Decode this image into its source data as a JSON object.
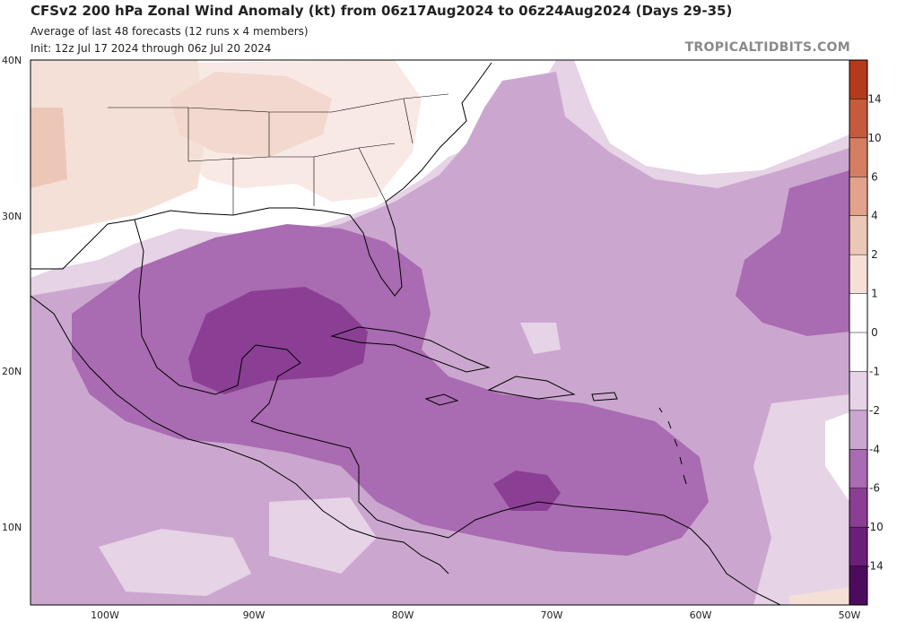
{
  "header": {
    "title": "CFSv2 200 hPa Zonal Wind Anomaly (kt) from 06z17Aug2024 to 06z24Aug2024 (Days 29-35)",
    "subtitle1": "Average of last 48 forecasts (12 runs x 4 members)",
    "subtitle2": "Init: 12z Jul 17 2024 through 06z Jul 20 2024",
    "brand": "TROPICALTIDBITS.COM"
  },
  "axes": {
    "lat_labels": [
      "40N",
      "30N",
      "20N",
      "10N"
    ],
    "lon_labels": [
      "100W",
      "90W",
      "80W",
      "70W",
      "60W",
      "50W"
    ]
  },
  "colorbar": {
    "labels": [
      "14",
      "10",
      "6",
      "4",
      "2",
      "1",
      "0",
      "-1",
      "-2",
      "-4",
      "-6",
      "-10",
      "-14"
    ],
    "colors": [
      "#b5391b",
      "#c65a3c",
      "#d47e62",
      "#e2a28c",
      "#ecc6b6",
      "#f5e0d8",
      "#ffffff",
      "#ffffff",
      "#e6d3e6",
      "#cba7cf",
      "#a96bb1",
      "#8a3f94",
      "#6c1f78",
      "#4e0a5c"
    ]
  },
  "map": {
    "region": "Gulf of Mexico, Caribbean and western Atlantic",
    "fill_colors": {
      "neg1_2": "#e6d3e6",
      "neg2_4": "#cba7cf",
      "neg4_6": "#a96bb1",
      "neg6_10": "#8a3f94",
      "pos1_2": "#f5e0d8",
      "pos2_4": "#ecc6b6",
      "land_outline": "#000000"
    }
  }
}
